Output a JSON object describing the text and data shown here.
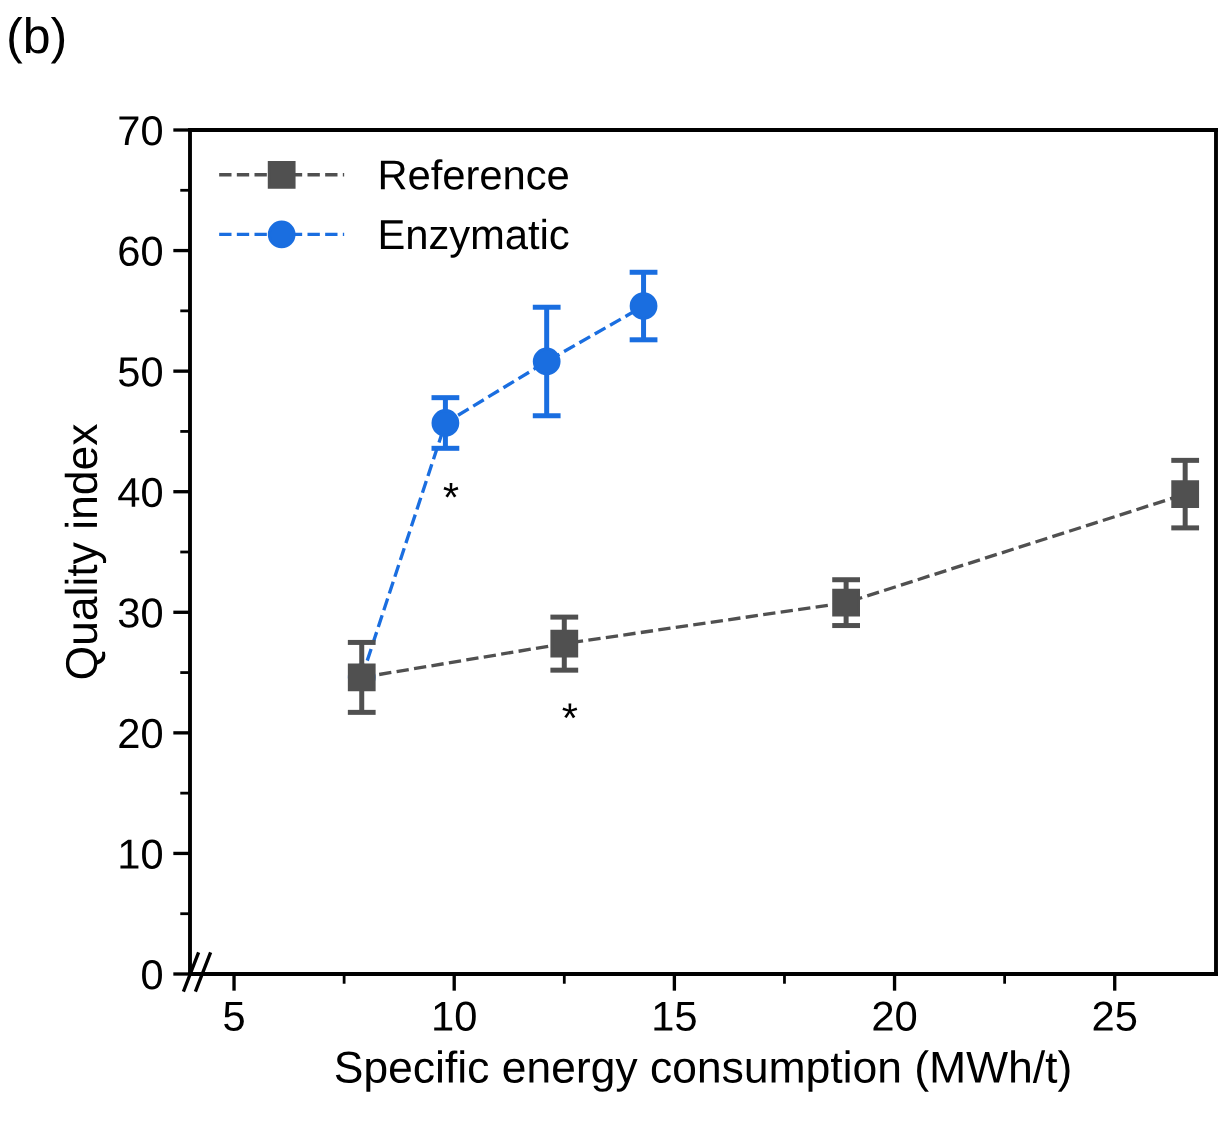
{
  "chart_data": {
    "type": "line",
    "xlabel": "Specific energy consumption (MWh/t)",
    "ylabel": "Quality index",
    "series": [
      {
        "name": "Reference",
        "color": "#505050",
        "marker": "square",
        "x": [
          7.9,
          12.5,
          18.9,
          26.6
        ],
        "values": [
          24.6,
          27.4,
          30.8,
          39.8
        ],
        "errors": [
          2.9,
          2.2,
          1.9,
          2.8
        ]
      },
      {
        "name": "Enzymatic",
        "color": "#1a6ee0",
        "marker": "circle",
        "x": [
          7.9,
          9.8,
          12.1,
          14.3
        ],
        "values": [
          24.6,
          45.7,
          50.8,
          55.4
        ],
        "errors": [
          null,
          2.1,
          4.5,
          2.8
        ]
      }
    ],
    "line_style": "dashed",
    "xlim": [
      4,
      27.3
    ],
    "xticks": [
      5,
      10,
      15,
      20,
      25
    ],
    "ylim": [
      0,
      70
    ],
    "yticks": [
      0,
      10,
      20,
      30,
      40,
      50,
      60,
      70
    ],
    "grid": false,
    "legend": "top left",
    "annotations": [
      "(b)",
      {
        "text": "*",
        "x": 9.8,
        "y": 45.7
      },
      {
        "text": "*",
        "x": 12.5,
        "y": 27.4
      }
    ]
  }
}
